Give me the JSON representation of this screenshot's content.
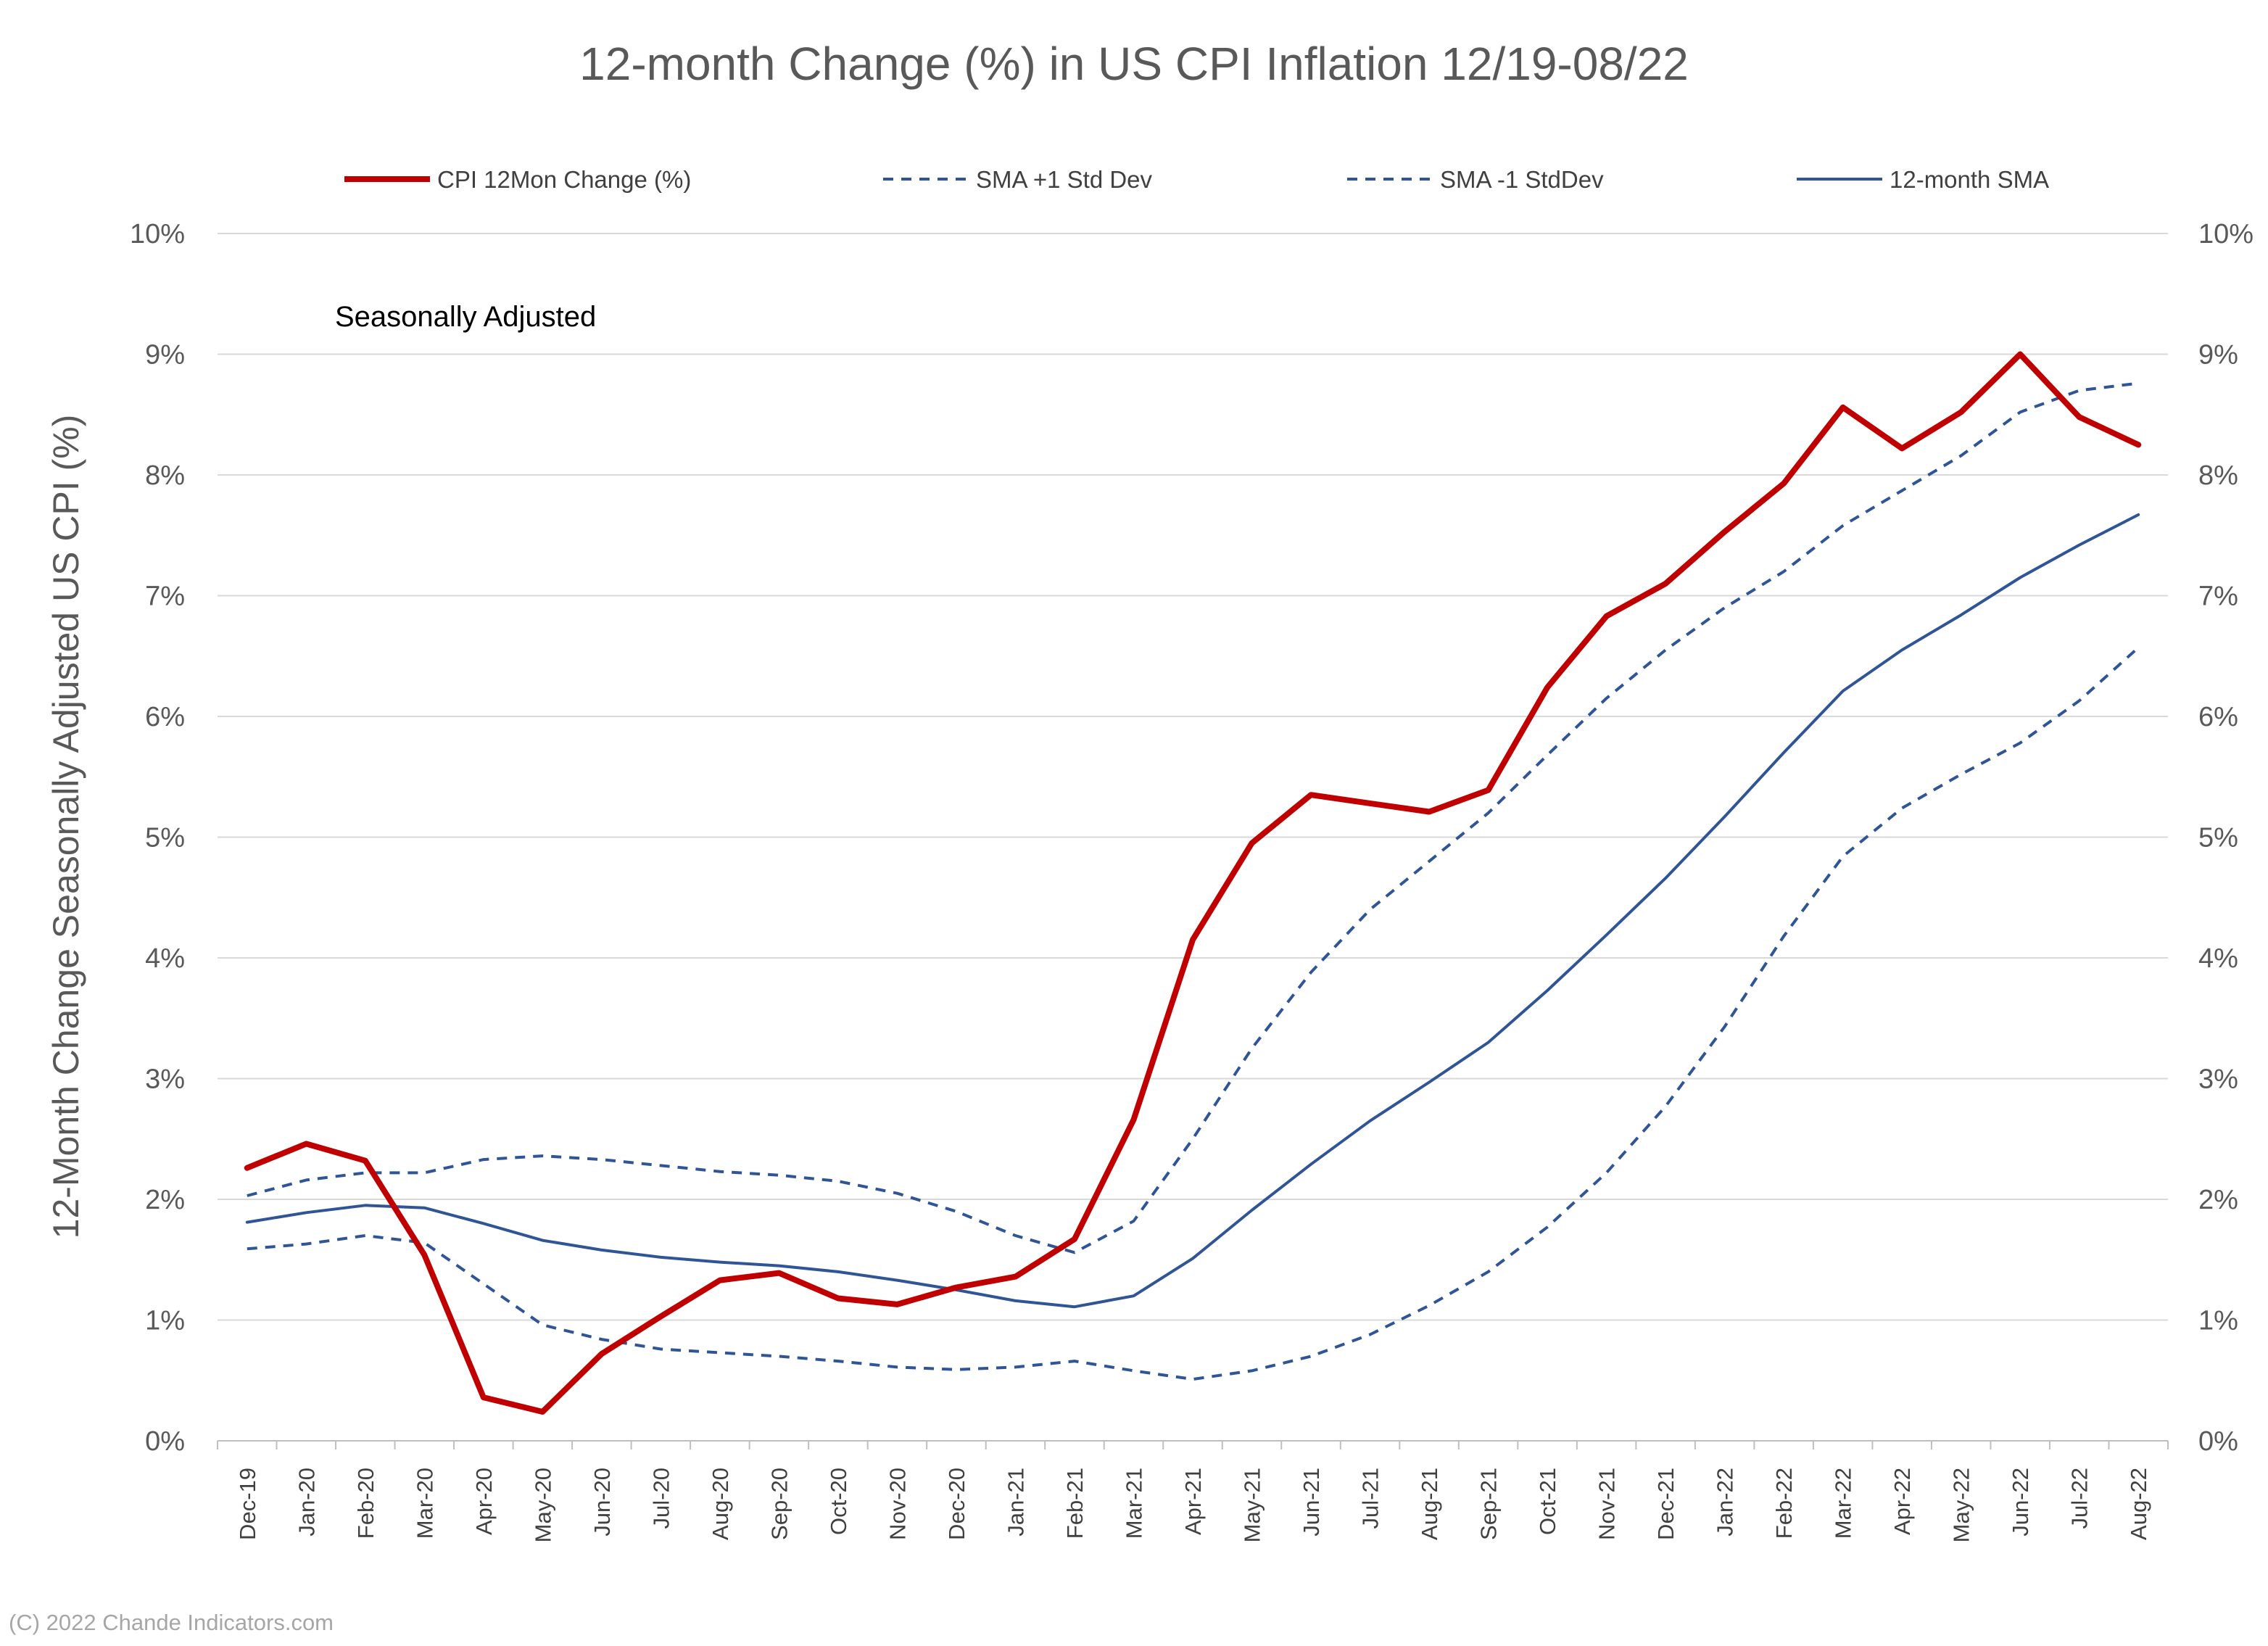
{
  "chart_data": {
    "type": "line",
    "title": "12-month Change (%) in US CPI Inflation 12/19-08/22",
    "ylabel": "12-Month Change Seasonally Adjusted US CPI (%)",
    "xlabel": "",
    "annotation": "Seasonally Adjusted",
    "credit": "(C) 2022 Chande Indicators.com",
    "ylim": [
      0,
      10
    ],
    "y_ticks": [
      "0%",
      "1%",
      "2%",
      "3%",
      "4%",
      "5%",
      "6%",
      "7%",
      "8%",
      "9%",
      "10%"
    ],
    "grid": true,
    "legend_position": "top",
    "secondary_y_axis": true,
    "categories": [
      "Dec-19",
      "Jan-20",
      "Feb-20",
      "Mar-20",
      "Apr-20",
      "May-20",
      "Jun-20",
      "Jul-20",
      "Aug-20",
      "Sep-20",
      "Oct-20",
      "Nov-20",
      "Dec-20",
      "Jan-21",
      "Feb-21",
      "Mar-21",
      "Apr-21",
      "May-21",
      "Jun-21",
      "Jul-21",
      "Aug-21",
      "Sep-21",
      "Oct-21",
      "Nov-21",
      "Dec-21",
      "Jan-22",
      "Feb-22",
      "Mar-22",
      "Apr-22",
      "May-22",
      "Jun-22",
      "Jul-22",
      "Aug-22"
    ],
    "series": [
      {
        "name": "CPI 12Mon Change (%)",
        "color": "#c00000",
        "style": "solid-thick",
        "values": [
          2.26,
          2.46,
          2.32,
          1.54,
          0.36,
          0.24,
          0.72,
          1.03,
          1.33,
          1.39,
          1.18,
          1.13,
          1.27,
          1.36,
          1.67,
          2.66,
          4.15,
          4.95,
          5.35,
          5.28,
          5.21,
          5.39,
          6.24,
          6.83,
          7.1,
          7.53,
          7.93,
          8.56,
          8.22,
          8.52,
          9.0,
          8.48,
          8.25
        ]
      },
      {
        "name": "SMA +1 Std Dev",
        "color": "#2f5597",
        "style": "dashed",
        "values": [
          2.03,
          2.16,
          2.22,
          2.22,
          2.33,
          2.36,
          2.33,
          2.28,
          2.23,
          2.2,
          2.15,
          2.05,
          1.9,
          1.7,
          1.56,
          1.82,
          2.5,
          3.25,
          3.88,
          4.4,
          4.8,
          5.2,
          5.68,
          6.15,
          6.55,
          6.9,
          7.2,
          7.58,
          7.87,
          8.16,
          8.52,
          8.7,
          8.76
        ]
      },
      {
        "name": "SMA -1 StdDev",
        "color": "#2f5597",
        "style": "dashed",
        "values": [
          1.59,
          1.63,
          1.7,
          1.64,
          1.3,
          0.96,
          0.84,
          0.76,
          0.73,
          0.7,
          0.66,
          0.61,
          0.59,
          0.61,
          0.66,
          0.58,
          0.51,
          0.58,
          0.7,
          0.88,
          1.12,
          1.4,
          1.77,
          2.22,
          2.77,
          3.43,
          4.18,
          4.84,
          5.24,
          5.52,
          5.78,
          6.13,
          6.57
        ]
      },
      {
        "name": "12-month SMA",
        "color": "#2f5597",
        "style": "solid",
        "values": [
          1.81,
          1.89,
          1.95,
          1.93,
          1.8,
          1.66,
          1.58,
          1.52,
          1.48,
          1.45,
          1.4,
          1.33,
          1.25,
          1.16,
          1.11,
          1.2,
          1.51,
          1.91,
          2.29,
          2.65,
          2.97,
          3.3,
          3.73,
          4.19,
          4.66,
          5.17,
          5.7,
          6.21,
          6.55,
          6.84,
          7.15,
          7.42,
          7.67
        ]
      }
    ]
  }
}
